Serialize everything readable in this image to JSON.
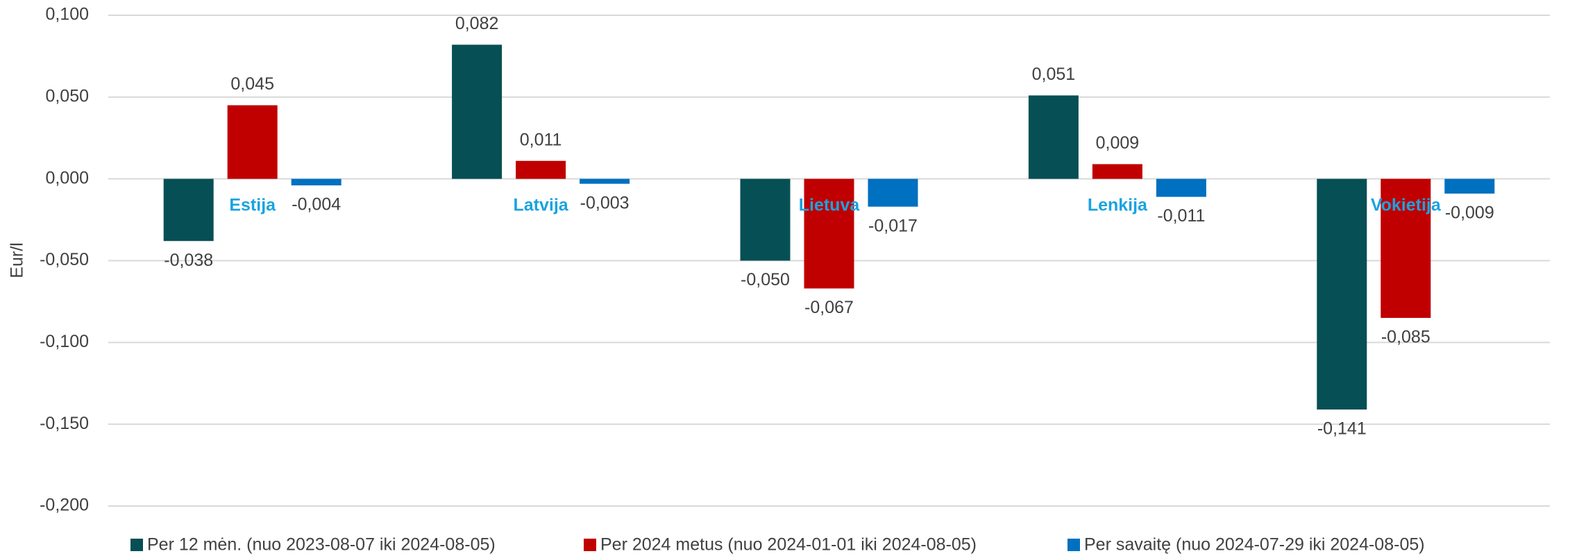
{
  "chart_data": {
    "type": "bar",
    "y_label": "Eur/l",
    "categories": [
      "Estija",
      "Latvija",
      "Lietuva",
      "Lenkija",
      "Vokietija"
    ],
    "series": [
      {
        "name": "Per 12 mėn. (nuo 2023-08-07 iki 2024-08-05)",
        "color": "#064f55",
        "values": [
          -0.038,
          0.082,
          -0.05,
          0.051,
          -0.141
        ],
        "value_labels": [
          "-0,038",
          "0,082",
          "-0,050",
          "0,051",
          "-0,141"
        ]
      },
      {
        "name": "Per 2024 metus (nuo 2024-01-01 iki 2024-08-05)",
        "color": "#c00000",
        "values": [
          0.045,
          0.011,
          -0.067,
          0.009,
          -0.085
        ],
        "value_labels": [
          "0,045",
          "0,011",
          "-0,067",
          "0,009",
          "-0,085"
        ]
      },
      {
        "name": "Per savaitę (nuo 2024-07-29 iki 2024-08-05)",
        "color": "#0070c0",
        "values": [
          -0.004,
          -0.003,
          -0.017,
          -0.011,
          -0.009
        ],
        "value_labels": [
          "-0,004",
          "-0,003",
          "-0,017",
          "-0,011",
          "-0,009"
        ]
      }
    ],
    "ylim": [
      -0.2,
      0.1
    ],
    "yticks": [
      {
        "value": 0.1,
        "label": "0,100"
      },
      {
        "value": 0.05,
        "label": "0,050"
      },
      {
        "value": 0,
        "label": "0,000"
      },
      {
        "value": -0.05,
        "label": "-0,050"
      },
      {
        "value": -0.1,
        "label": "-0,100"
      },
      {
        "value": -0.15,
        "label": "-0,150"
      },
      {
        "value": -0.2,
        "label": "-0,200"
      }
    ],
    "grid": true,
    "legend": "bottom"
  }
}
